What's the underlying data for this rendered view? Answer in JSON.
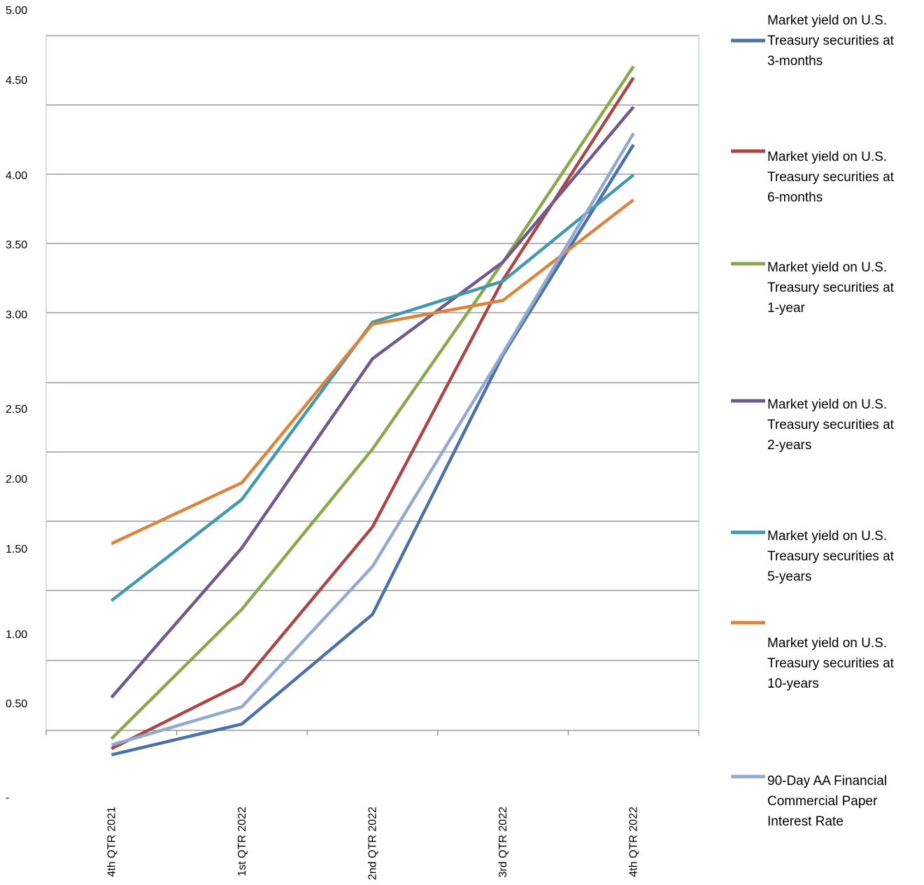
{
  "chart_data": {
    "type": "line",
    "title": "",
    "xlabel": "",
    "ylabel": "",
    "categories": [
      "4th QTR 2021",
      "1st QTR 2022",
      "2nd QTR 2022",
      "3rd QTR 2022",
      "4th QTR 2022"
    ],
    "y_tick_labels": [
      "5.00",
      "4.50",
      "4.00",
      "3.50",
      "3.00",
      "2.50",
      "2.00",
      "1.50",
      "1.00",
      "0.50",
      "-"
    ],
    "grid": "horizontal",
    "legend_position": "right",
    "series": [
      {
        "name": "Market yield on U.S. Treasury securities at 3-months",
        "color": "#4a71aa",
        "values": [
          0.08,
          0.33,
          1.11,
          2.78,
          4.16
        ]
      },
      {
        "name": "Market yield on U.S. Treasury securities at 6-months",
        "color": "#aa4744",
        "values": [
          0.13,
          0.64,
          1.65,
          3.24,
          4.52
        ]
      },
      {
        "name": "Market yield on U.S. Treasury securities at 1-year",
        "color": "#89a84f",
        "values": [
          0.21,
          1.14,
          2.21,
          3.37,
          4.6
        ]
      },
      {
        "name": "Market yield on U.S. Treasury securities at 2-years",
        "color": "#71588f",
        "values": [
          0.54,
          1.5,
          2.76,
          3.37,
          4.36
        ]
      },
      {
        "name": "Market yield on U.S. Treasury securities at 5-years",
        "color": "#4298af",
        "values": [
          1.19,
          1.85,
          2.95,
          3.23,
          4.0
        ]
      },
      {
        "name": "Market yield on U.S. Treasury securities at 10-years",
        "color": "#db843d",
        "values": [
          1.53,
          1.97,
          2.94,
          3.09,
          3.82
        ]
      },
      {
        "name": "90-Day AA Financial Commercial Paper Interest Rate",
        "color": "#93a9cf",
        "values": [
          0.16,
          0.47,
          1.39,
          2.79,
          4.22
        ]
      }
    ],
    "legend_lines": [
      [
        "Market yield on U.S.",
        "Treasury securities at",
        "3-months"
      ],
      [
        "Market yield on U.S.",
        "Treasury securities at",
        "6-months"
      ],
      [
        "Market yield on U.S.",
        "Treasury securities at",
        "1-year"
      ],
      [
        "Market yield on U.S.",
        "Treasury securities at",
        "2-years"
      ],
      [
        "Market yield on U.S.",
        "Treasury securities at",
        "5-years"
      ],
      [
        "Market yield on U.S.",
        "Treasury securities at",
        "10-years"
      ],
      [
        "90-Day AA Financial",
        "Commercial Paper",
        "Interest Rate"
      ]
    ]
  }
}
